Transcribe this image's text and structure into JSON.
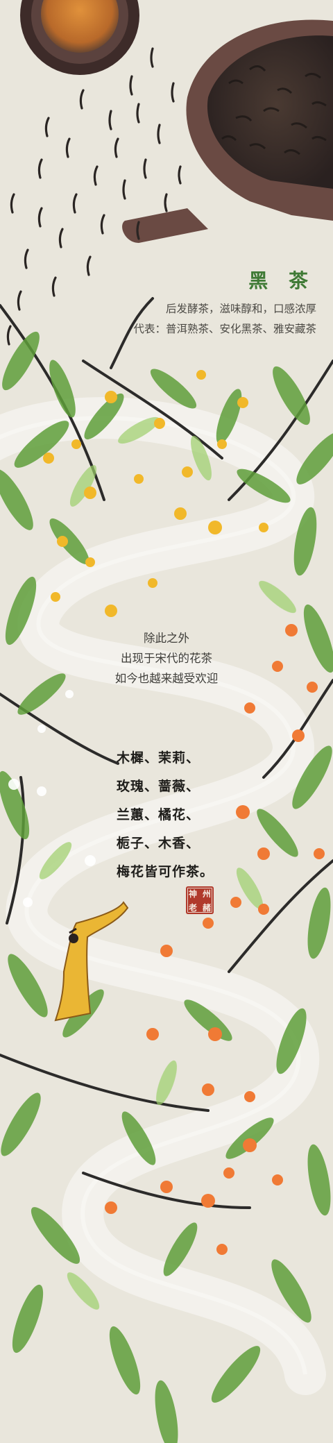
{
  "black_tea": {
    "title": "黑 茶",
    "description": "后发酵茶，滋味醇和，口感浓厚",
    "examples": "代表：普洱熟茶、安化黑茶、雅安藏茶"
  },
  "flower_tea": {
    "lines": [
      "除此之外",
      "出现于宋代的花茶",
      "如今也越来越受欢迎"
    ]
  },
  "poem": {
    "lines": [
      "木樨、茉莉、",
      "玫瑰、蔷薇、",
      "兰蕙、橘花、",
      "栀子、木香、",
      "梅花皆可作茶。"
    ]
  },
  "seal": {
    "chars": [
      "神",
      "州",
      "老",
      "赭"
    ]
  },
  "colors": {
    "background": "#e9e6dc",
    "title_green": "#3f7a35",
    "leaf_green": "#5f9f3a",
    "osmanthus_yellow": "#f1b82a",
    "orange_blossom": "#f07a35",
    "seal_red": "#b03a2c",
    "robe_yellow": "#eab634",
    "pot_brown": "#6a4a43"
  },
  "icons": [
    "teapot-illustration",
    "tea-cup-illustration",
    "scholar-figure-illustration",
    "seal-stamp"
  ]
}
